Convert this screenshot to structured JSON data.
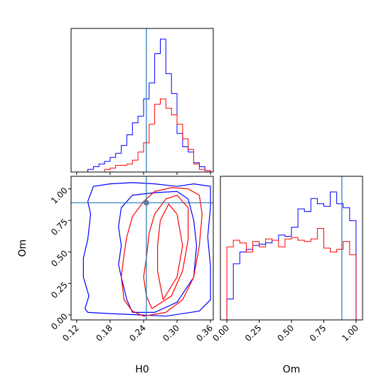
{
  "chart_data": [
    {
      "panel": "histogram-H0",
      "type": "histogram",
      "x_range": [
        0.11,
        0.365
      ],
      "x_ticks": [
        "0.12",
        "0.18",
        "0.24",
        "0.30",
        "0.36"
      ],
      "bin_edges": [
        0.14,
        0.15,
        0.16,
        0.17,
        0.18,
        0.19,
        0.2,
        0.21,
        0.22,
        0.23,
        0.24,
        0.25,
        0.26,
        0.27,
        0.28,
        0.29,
        0.3,
        0.31,
        0.32,
        0.33,
        0.34,
        0.35,
        0.36
      ],
      "series": [
        {
          "color": "#0000ff",
          "values": [
            0.02,
            0.04,
            0.06,
            0.08,
            0.11,
            0.14,
            0.2,
            0.28,
            0.37,
            0.42,
            0.55,
            0.67,
            0.89,
            1.0,
            0.74,
            0.59,
            0.29,
            0.19,
            0.15,
            0.07,
            0.04,
            0.01
          ]
        },
        {
          "color": "#ff0000",
          "values": [
            0,
            0,
            0,
            0.02,
            0.03,
            0.05,
            0.05,
            0.06,
            0.09,
            0.15,
            0.22,
            0.36,
            0.51,
            0.55,
            0.48,
            0.43,
            0.36,
            0.25,
            0.17,
            0.06,
            0.02,
            0.01
          ]
        }
      ],
      "truth_line": 0.245
    },
    {
      "panel": "contour-H0-Om",
      "type": "contour",
      "xlabel": "H0",
      "ylabel": "Om",
      "x_range": [
        0.11,
        0.365
      ],
      "y_range": [
        -0.04,
        1.1
      ],
      "x_ticks": [
        "0.12",
        "0.18",
        "0.24",
        "0.30",
        "0.36"
      ],
      "y_ticks": [
        "0.00",
        "0.25",
        "0.50",
        "0.75",
        "1.00"
      ],
      "truth_point": [
        0.245,
        0.89
      ],
      "series": [
        {
          "color": "#0000ff",
          "contours": [
            [
              [
                0.18,
                0.01
              ],
              [
                0.23,
                0.0
              ],
              [
                0.28,
                -0.01
              ],
              [
                0.34,
                0.03
              ],
              [
                0.36,
                0.12
              ],
              [
                0.36,
                0.38
              ],
              [
                0.355,
                0.62
              ],
              [
                0.36,
                0.86
              ],
              [
                0.36,
                1.02
              ],
              [
                0.33,
                1.04
              ],
              [
                0.3,
                1.02
              ],
              [
                0.26,
                1.04
              ],
              [
                0.22,
                1.05
              ],
              [
                0.18,
                1.04
              ],
              [
                0.15,
                1.02
              ],
              [
                0.14,
                0.9
              ],
              [
                0.145,
                0.8
              ],
              [
                0.14,
                0.6
              ],
              [
                0.132,
                0.45
              ],
              [
                0.132,
                0.3
              ],
              [
                0.142,
                0.15
              ],
              [
                0.135,
                0.05
              ],
              [
                0.14,
                0.02
              ],
              [
                0.18,
                0.01
              ]
            ],
            [
              [
                0.22,
                0.02
              ],
              [
                0.26,
                0.02
              ],
              [
                0.3,
                0.1
              ],
              [
                0.33,
                0.3
              ],
              [
                0.335,
                0.55
              ],
              [
                0.33,
                0.75
              ],
              [
                0.32,
                0.92
              ],
              [
                0.3,
                0.98
              ],
              [
                0.26,
                0.97
              ],
              [
                0.22,
                0.95
              ],
              [
                0.2,
                0.85
              ],
              [
                0.195,
                0.7
              ],
              [
                0.2,
                0.55
              ],
              [
                0.195,
                0.4
              ],
              [
                0.2,
                0.3
              ],
              [
                0.21,
                0.12
              ],
              [
                0.22,
                0.02
              ]
            ]
          ]
        },
        {
          "color": "#ff0000",
          "contours": [
            [
              [
                0.24,
                -0.01
              ],
              [
                0.28,
                0.02
              ],
              [
                0.31,
                0.12
              ],
              [
                0.33,
                0.3
              ],
              [
                0.34,
                0.55
              ],
              [
                0.345,
                0.8
              ],
              [
                0.34,
                0.95
              ],
              [
                0.32,
                1.0
              ],
              [
                0.29,
                1.01
              ],
              [
                0.26,
                0.98
              ],
              [
                0.24,
                0.9
              ],
              [
                0.22,
                0.78
              ],
              [
                0.21,
                0.62
              ],
              [
                0.205,
                0.48
              ],
              [
                0.2,
                0.3
              ],
              [
                0.205,
                0.12
              ],
              [
                0.22,
                0.03
              ],
              [
                0.24,
                -0.01
              ]
            ],
            [
              [
                0.255,
                0.05
              ],
              [
                0.29,
                0.15
              ],
              [
                0.31,
                0.35
              ],
              [
                0.32,
                0.6
              ],
              [
                0.32,
                0.85
              ],
              [
                0.3,
                0.95
              ],
              [
                0.28,
                0.92
              ],
              [
                0.26,
                0.8
              ],
              [
                0.25,
                0.65
              ],
              [
                0.245,
                0.45
              ],
              [
                0.24,
                0.3
              ],
              [
                0.245,
                0.15
              ],
              [
                0.255,
                0.05
              ]
            ],
            [
              [
                0.275,
                0.12
              ],
              [
                0.3,
                0.3
              ],
              [
                0.31,
                0.55
              ],
              [
                0.3,
                0.8
              ],
              [
                0.285,
                0.88
              ],
              [
                0.27,
                0.75
              ],
              [
                0.265,
                0.55
              ],
              [
                0.265,
                0.35
              ],
              [
                0.275,
                0.12
              ]
            ]
          ]
        }
      ]
    },
    {
      "panel": "histogram-Om",
      "type": "histogram",
      "xlabel": "Om",
      "x_range": [
        -0.05,
        1.05
      ],
      "x_ticks": [
        "0.00",
        "0.25",
        "0.50",
        "0.75",
        "1.00"
      ],
      "bin_edges": [
        0.0,
        0.05,
        0.1,
        0.15,
        0.2,
        0.25,
        0.3,
        0.35,
        0.4,
        0.45,
        0.5,
        0.55,
        0.6,
        0.65,
        0.7,
        0.75,
        0.8,
        0.85,
        0.9,
        0.95,
        1.0
      ],
      "series": [
        {
          "color": "#0000ff",
          "values": [
            0.16,
            0.43,
            0.52,
            0.54,
            0.57,
            0.58,
            0.59,
            0.61,
            0.65,
            0.64,
            0.71,
            0.85,
            0.83,
            0.93,
            0.89,
            0.87,
            0.98,
            0.89,
            0.86,
            0.76
          ]
        },
        {
          "color": "#ff0000",
          "values": [
            0.56,
            0.61,
            0.59,
            0.52,
            0.6,
            0.56,
            0.62,
            0.61,
            0.56,
            0.62,
            0.63,
            0.61,
            0.6,
            0.62,
            0.7,
            0.55,
            0.52,
            0.54,
            0.6,
            0.5
          ]
        }
      ],
      "truth_line": 0.89
    }
  ]
}
